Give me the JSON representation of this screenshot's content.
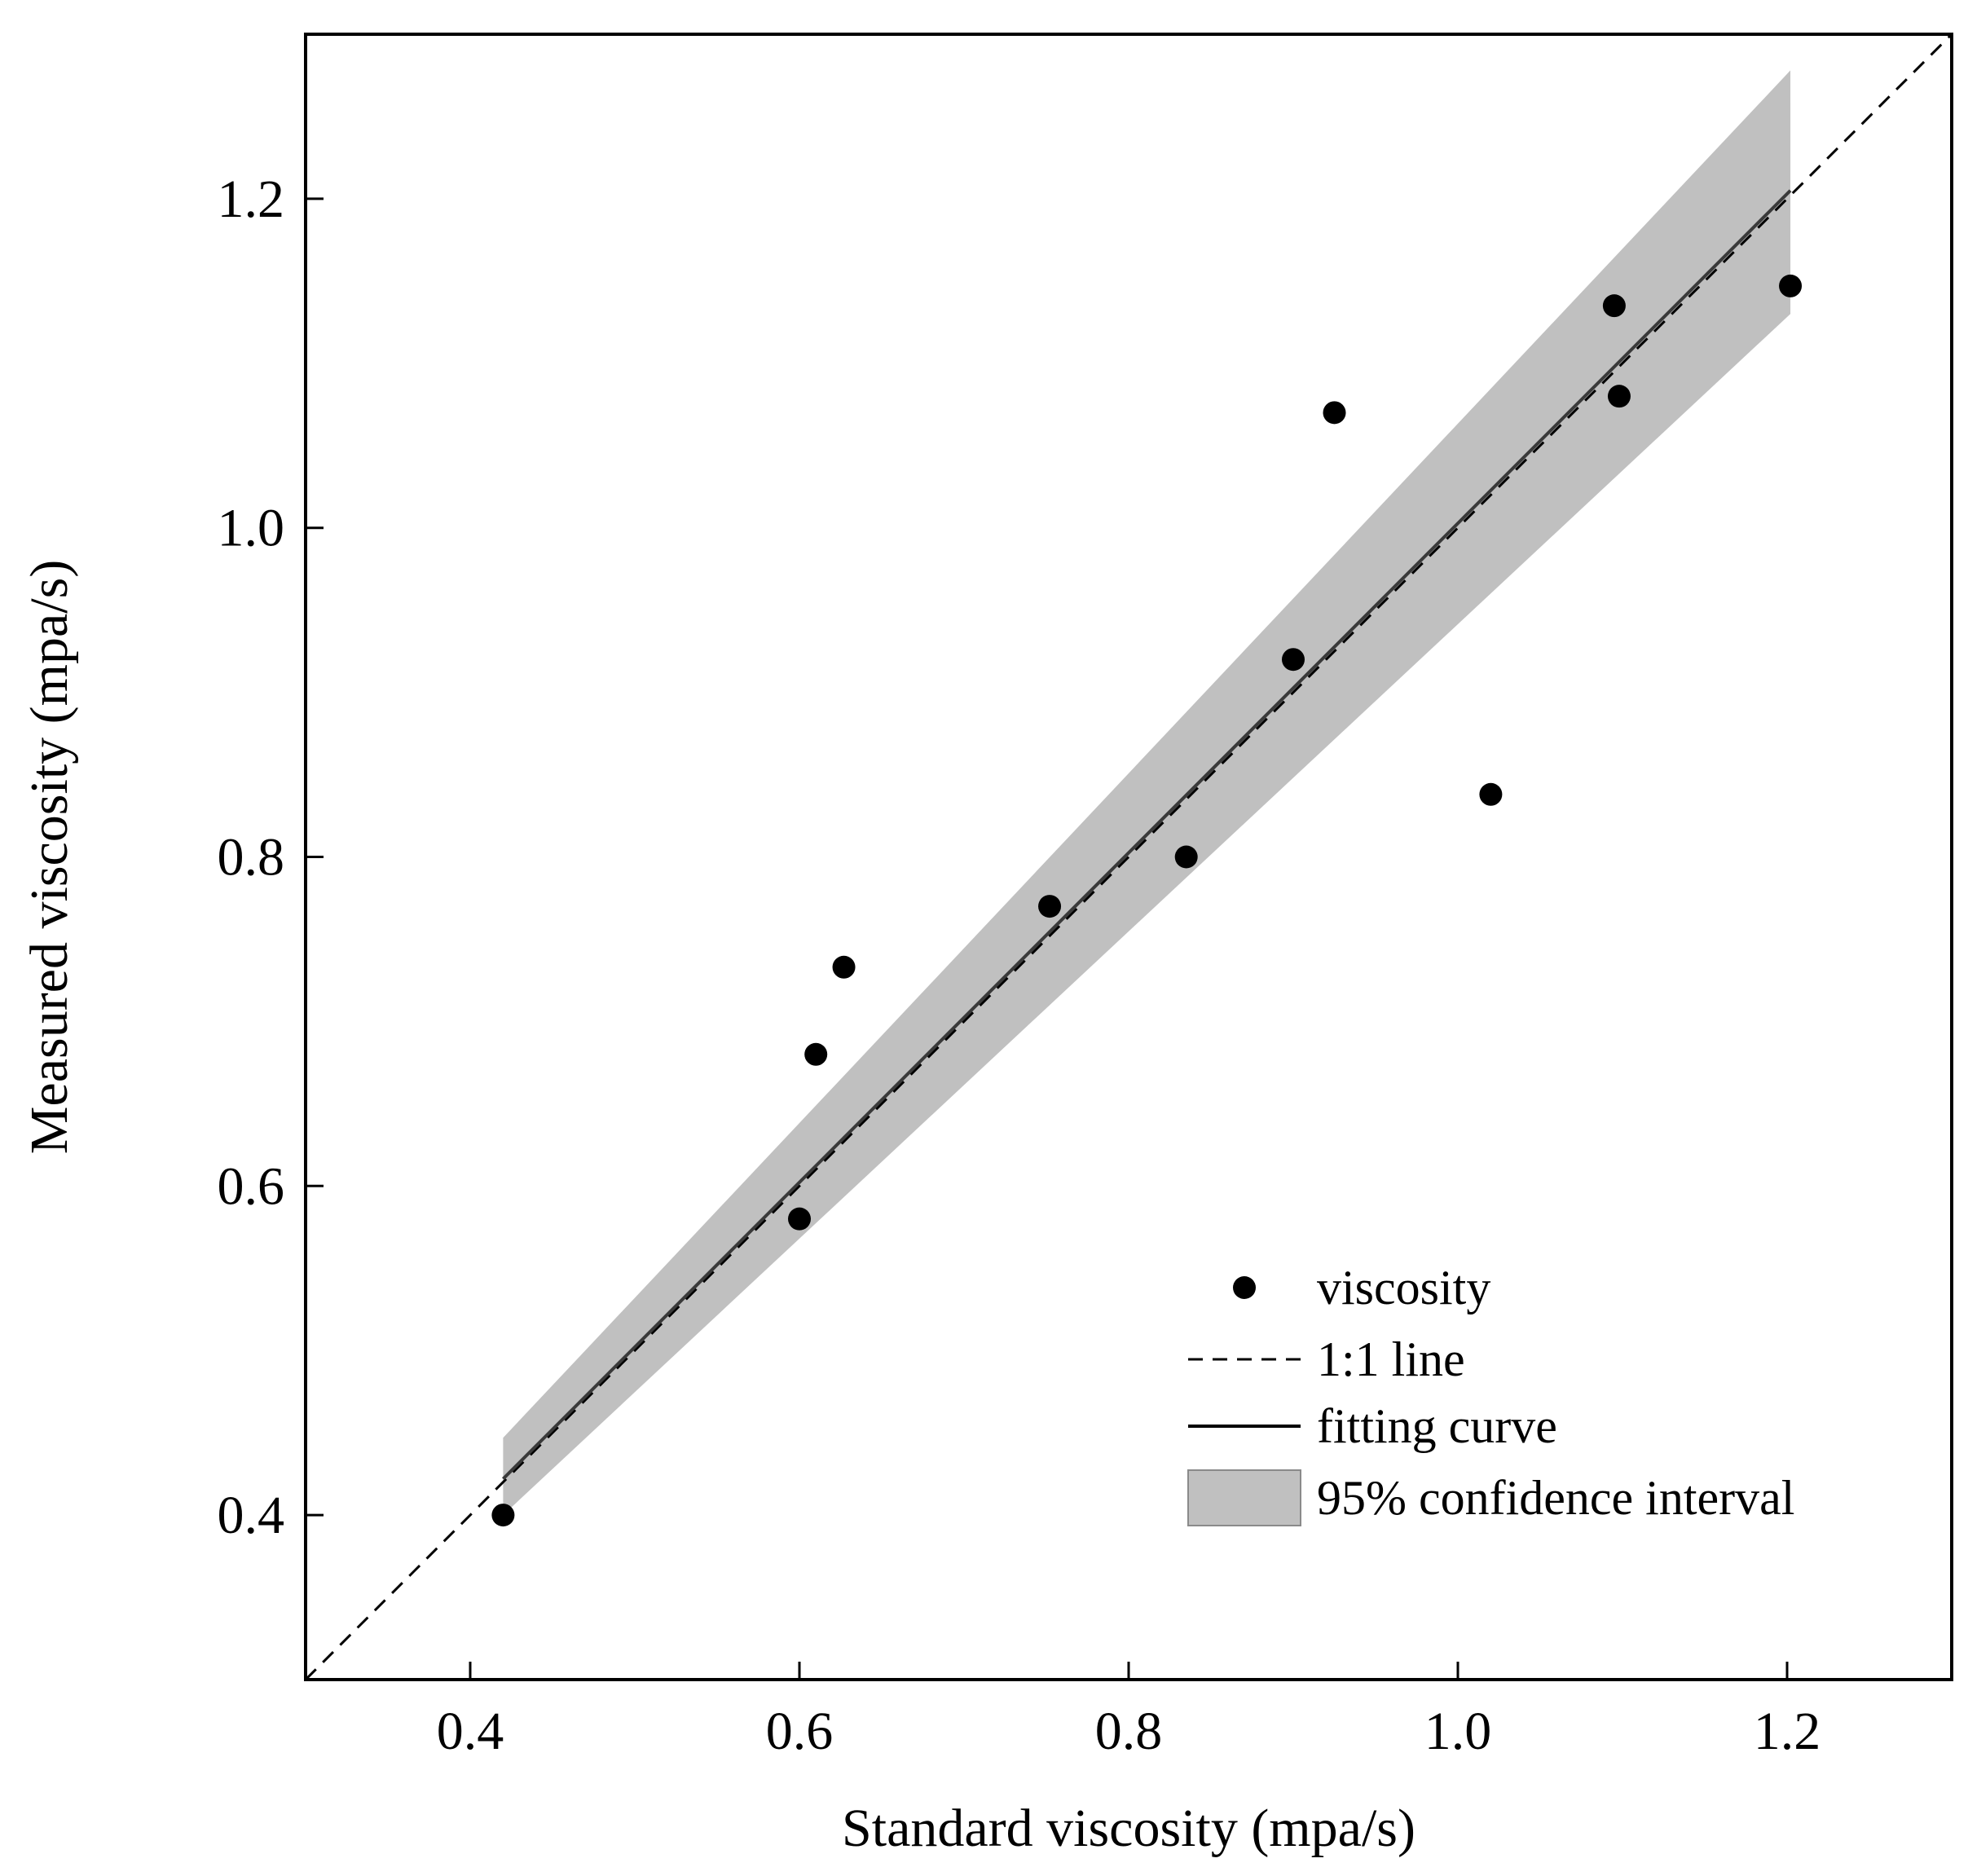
{
  "chart_data": {
    "type": "scatter",
    "title": "",
    "xlabel": "Standard  viscosity (mpa/s)",
    "ylabel": "Measured  viscosity (mpa/s)",
    "xlim": [
      0.3,
      1.3
    ],
    "ylim": [
      0.3,
      1.3
    ],
    "x_ticks": [
      0.4,
      0.6,
      0.8,
      1.0,
      1.2
    ],
    "x_tick_labels": [
      "0.4",
      "0.6",
      "0.8",
      "1.0",
      "1.2"
    ],
    "y_ticks": [
      0.4,
      0.6,
      0.8,
      1.0,
      1.2
    ],
    "y_tick_labels": [
      "0.4",
      "0.6",
      "0.8",
      "1.0",
      "1.2"
    ],
    "grid": false,
    "legend_position": "bottom-right",
    "series": [
      {
        "name": "viscosity",
        "kind": "scatter",
        "x": [
          0.42,
          0.6,
          0.61,
          0.627,
          0.752,
          0.835,
          0.9,
          0.925,
          1.02,
          1.095,
          1.098,
          1.202
        ],
        "y": [
          0.4,
          0.58,
          0.68,
          0.733,
          0.77,
          0.8,
          0.92,
          1.07,
          0.838,
          1.135,
          1.08,
          1.147
        ]
      },
      {
        "name": "1:1 line",
        "kind": "line",
        "style": "dashed",
        "x": [
          0.3,
          1.3
        ],
        "y": [
          0.3,
          1.3
        ]
      },
      {
        "name": "fitting curve",
        "kind": "line",
        "style": "solid",
        "x": [
          0.42,
          1.202
        ],
        "y": [
          0.422,
          1.205
        ]
      },
      {
        "name": "95% confidence interval",
        "kind": "band",
        "x": [
          0.42,
          1.202
        ],
        "lower": [
          0.4,
          1.13
        ],
        "upper": [
          0.447,
          1.278
        ]
      }
    ],
    "legend": [
      {
        "label": "viscosity",
        "symbol": "dot"
      },
      {
        "label": "1:1 line",
        "symbol": "dashed-line"
      },
      {
        "label": "fitting curve",
        "symbol": "solid-line"
      },
      {
        "label": "95% confidence interval",
        "symbol": "filled-box"
      }
    ],
    "colors": {
      "marker": "#000000",
      "fit_line": "#3a3a3a",
      "band": "#c0c0c0",
      "band_edge": "#8a8a8a",
      "axis": "#000000"
    }
  }
}
